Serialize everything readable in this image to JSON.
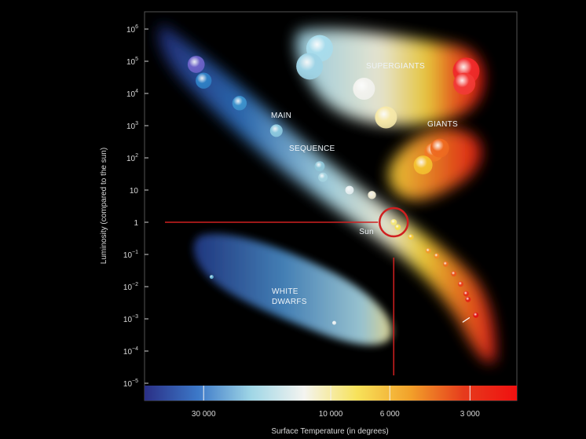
{
  "chart_data": {
    "type": "scatter",
    "title": "",
    "xlabel": "Surface Temperature (in degrees)",
    "ylabel": "Luminosity (compared to the sun)",
    "x_scale": "log",
    "x_reversed": true,
    "y_scale": "log",
    "xlim": [
      50000,
      2000
    ],
    "ylim": [
      1e-05,
      1000000
    ],
    "grid": false,
    "x_ticks": [
      {
        "value": 30000,
        "label": "30 000"
      },
      {
        "value": 10000,
        "label": "10 000"
      },
      {
        "value": 6000,
        "label": "6 000"
      },
      {
        "value": 3000,
        "label": "3 000"
      }
    ],
    "y_ticks": [
      {
        "value": 1000000,
        "base": "10",
        "exp": "6"
      },
      {
        "value": 100000,
        "base": "10",
        "exp": "5"
      },
      {
        "value": 10000,
        "base": "10",
        "exp": "4"
      },
      {
        "value": 1000,
        "base": "10",
        "exp": "3"
      },
      {
        "value": 100,
        "base": "10",
        "exp": "2"
      },
      {
        "value": 10,
        "base": "10",
        "exp": ""
      },
      {
        "value": 1,
        "base": "1",
        "exp": ""
      },
      {
        "value": 0.1,
        "base": "10",
        "exp": "−1"
      },
      {
        "value": 0.01,
        "base": "10",
        "exp": "−2"
      },
      {
        "value": 0.001,
        "base": "10",
        "exp": "−3"
      },
      {
        "value": 0.0001,
        "base": "10",
        "exp": "−4"
      },
      {
        "value": 1e-05,
        "base": "10",
        "exp": "−5"
      }
    ],
    "regions": [
      {
        "name": "SUPERGIANTS",
        "lines": [
          "SUPERGIANTS"
        ]
      },
      {
        "name": "GIANTS",
        "lines": [
          "GIANTS"
        ]
      },
      {
        "name": "MAIN SEQUENCE",
        "lines": [
          "MAIN",
          "SEQUENCE"
        ]
      },
      {
        "name": "WHITE DWARFS",
        "lines": [
          "WHITE",
          "DWARFS"
        ]
      }
    ],
    "annotations": [
      {
        "text": "Sun",
        "x": 5800,
        "y": 1,
        "color": "#d02020",
        "shape": "circle"
      }
    ],
    "reference_lines": [
      {
        "axis": "y",
        "value": 1,
        "color": "#d02020"
      },
      {
        "axis": "x",
        "value": 5800,
        "color": "#d02020"
      }
    ],
    "temperature_colorbar": [
      "#2a2f86",
      "#3c78c8",
      "#9fd6e6",
      "#f4f4f0",
      "#f7e25a",
      "#f2a12a",
      "#e63b1c",
      "#f01010"
    ],
    "stars": [
      {
        "group": "main sequence",
        "x": 32000,
        "y": 80000,
        "color": "#6d63c8"
      },
      {
        "group": "main sequence",
        "x": 30000,
        "y": 25000,
        "color": "#2f7fc4"
      },
      {
        "group": "main sequence",
        "x": 22000,
        "y": 5000,
        "color": "#3d92cc"
      },
      {
        "group": "main sequence",
        "x": 16000,
        "y": 700,
        "color": "#8cc8de"
      },
      {
        "group": "main sequence",
        "x": 11000,
        "y": 55,
        "color": "#8fc6d8"
      },
      {
        "group": "main sequence",
        "x": 10700,
        "y": 25,
        "color": "#a5d3e0"
      },
      {
        "group": "main sequence",
        "x": 8500,
        "y": 10,
        "color": "#e6eef0"
      },
      {
        "group": "main sequence",
        "x": 7000,
        "y": 7,
        "color": "#f1ecd4"
      },
      {
        "group": "main sequence",
        "x": 5800,
        "y": 1,
        "color": "#f4e67a"
      },
      {
        "group": "main sequence",
        "x": 5600,
        "y": 0.7,
        "color": "#f4e050"
      },
      {
        "group": "main sequence",
        "x": 5000,
        "y": 0.35,
        "color": "#f3c838"
      },
      {
        "group": "main sequence",
        "x": 4300,
        "y": 0.13,
        "color": "#f09a2a"
      },
      {
        "group": "main sequence",
        "x": 4000,
        "y": 0.09,
        "color": "#ee8a24"
      },
      {
        "group": "main sequence",
        "x": 3700,
        "y": 0.05,
        "color": "#eb7020"
      },
      {
        "group": "main sequence",
        "x": 3450,
        "y": 0.025,
        "color": "#e9551c"
      },
      {
        "group": "main sequence",
        "x": 3250,
        "y": 0.012,
        "color": "#e8401a"
      },
      {
        "group": "main sequence",
        "x": 3100,
        "y": 0.006,
        "color": "#e63018"
      },
      {
        "group": "main sequence",
        "x": 3050,
        "y": 0.004,
        "color": "#e02214"
      },
      {
        "group": "main sequence",
        "x": 2850,
        "y": 0.0013,
        "color": "#e01414"
      },
      {
        "group": "supergiants",
        "x": 11000,
        "y": 250000,
        "color": "#a8dcec"
      },
      {
        "group": "supergiants",
        "x": 12000,
        "y": 70000,
        "color": "#9fd4e6"
      },
      {
        "group": "supergiants",
        "x": 7500,
        "y": 14000,
        "color": "#f2f2ee"
      },
      {
        "group": "supergiants",
        "x": 6200,
        "y": 1800,
        "color": "#f6e8a8"
      },
      {
        "group": "supergiants",
        "x": 3100,
        "y": 50000,
        "color": "#f02a2a"
      },
      {
        "group": "supergiants",
        "x": 3150,
        "y": 20000,
        "color": "#f23a36"
      },
      {
        "group": "giants",
        "x": 4100,
        "y": 150,
        "color": "#f07a24"
      },
      {
        "group": "giants",
        "x": 3900,
        "y": 200,
        "color": "#ee6a20"
      },
      {
        "group": "giants",
        "x": 4500,
        "y": 60,
        "color": "#f3c030"
      },
      {
        "group": "white dwarfs",
        "x": 28000,
        "y": 0.02,
        "color": "#6ab8d8"
      },
      {
        "group": "white dwarfs",
        "x": 9700,
        "y": 0.00075,
        "color": "#e8eef0"
      }
    ]
  }
}
